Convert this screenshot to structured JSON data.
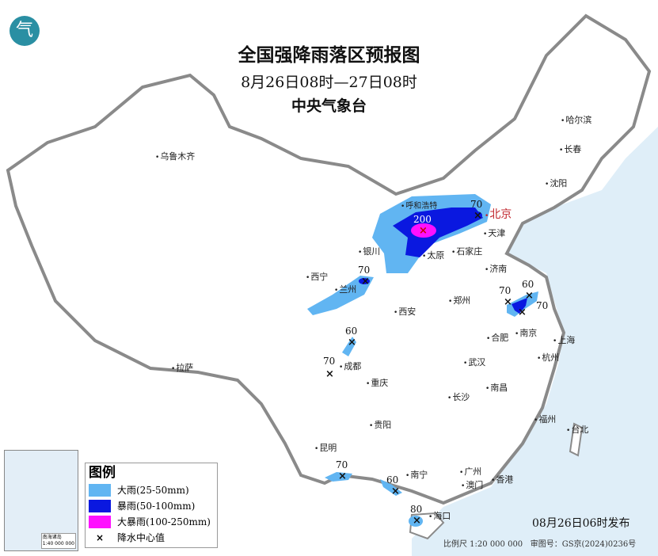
{
  "header": {
    "title": "全国强降雨落区预报图",
    "period": "8月26日08时—27日08时",
    "issuer": "中央气象台"
  },
  "logo_text": "气",
  "colors": {
    "heavy_rain": "#61b5f2",
    "rainstorm": "#0a18e0",
    "heavy_rainstorm": "#ff10ff",
    "sea": "#dfeef8",
    "border": "#8a8a8a"
  },
  "legend": {
    "title": "图例",
    "items": [
      {
        "label": "大雨(25-50mm)"
      },
      {
        "label": "暴雨(50-100mm)"
      },
      {
        "label": "大暴雨(100-250mm)"
      },
      {
        "label": "降水中心值",
        "symbol": "×"
      }
    ]
  },
  "cities": [
    {
      "name": "北京",
      "capital": true
    },
    {
      "name": "乌鲁木齐"
    },
    {
      "name": "哈尔滨"
    },
    {
      "name": "长春"
    },
    {
      "name": "沈阳"
    },
    {
      "name": "呼和浩特"
    },
    {
      "name": "天津"
    },
    {
      "name": "银川"
    },
    {
      "name": "太原"
    },
    {
      "name": "石家庄"
    },
    {
      "name": "济南"
    },
    {
      "name": "西宁"
    },
    {
      "name": "兰州"
    },
    {
      "name": "郑州"
    },
    {
      "name": "西安"
    },
    {
      "name": "合肥"
    },
    {
      "name": "南京"
    },
    {
      "name": "上海"
    },
    {
      "name": "杭州"
    },
    {
      "name": "成都"
    },
    {
      "name": "武汉"
    },
    {
      "name": "拉萨"
    },
    {
      "name": "重庆"
    },
    {
      "name": "南昌"
    },
    {
      "name": "长沙"
    },
    {
      "name": "贵阳"
    },
    {
      "name": "福州"
    },
    {
      "name": "台北"
    },
    {
      "name": "昆明"
    },
    {
      "name": "南宁"
    },
    {
      "name": "广州"
    },
    {
      "name": "澳门"
    },
    {
      "name": "香港"
    },
    {
      "name": "海口"
    }
  ],
  "rain_centers": [
    "200",
    "70",
    "70",
    "60",
    "70",
    "70",
    "60",
    "80",
    "70",
    "60",
    "70"
  ],
  "inset": {
    "label1": "南海诸岛",
    "label2": "1:40 000 000"
  },
  "footer": {
    "issued": "08月26日06时发布",
    "scale": "比例尺 1:20 000 000",
    "review_no": "审图号：GS京(2024)0236号"
  }
}
